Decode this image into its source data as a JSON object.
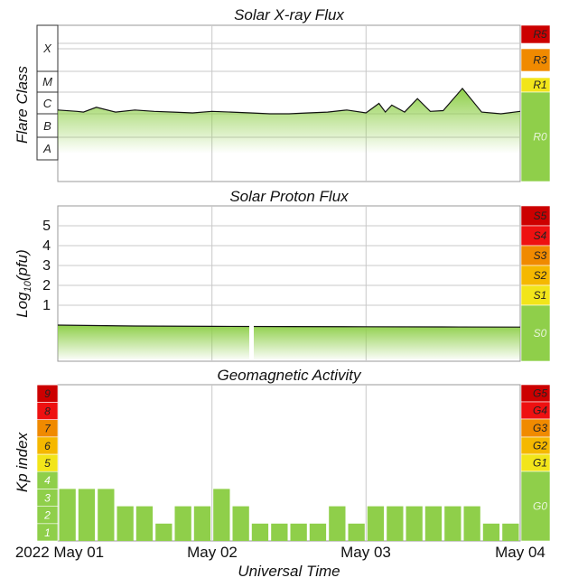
{
  "chart_data": [
    {
      "type": "area",
      "title": "Solar X-ray Flux",
      "ylabel": "Flare Class",
      "y_scale": "log",
      "y_classes": [
        "A",
        "B",
        "C",
        "M",
        "X"
      ],
      "scale_labels": [
        "R5",
        "R3",
        "R1",
        "R0"
      ],
      "scale_colors": [
        "#cc0000",
        "#f08a00",
        "#f2e51a",
        "#8fcf4a"
      ],
      "x": [
        "May 01 00h",
        "May 01 03h",
        "May 01 04h",
        "May 01 06h",
        "May 01 09h",
        "May 01 12h",
        "May 01 15h",
        "May 01 18h",
        "May 01 21h",
        "May 02 00h",
        "May 02 03h",
        "May 02 06h",
        "May 02 09h",
        "May 02 12h",
        "May 02 15h",
        "May 02 18h",
        "May 02 21h",
        "May 03 00h",
        "May 03 02h",
        "May 03 03h",
        "May 03 04h",
        "May 03 06h",
        "May 03 08h",
        "May 03 10h",
        "May 03 12h",
        "May 03 15h",
        "May 03 18h",
        "May 03 21h",
        "May 04 00h"
      ],
      "values": [
        "C1.5",
        "C1.3",
        "C1.2",
        "C2.0",
        "C1.2",
        "C1.5",
        "C1.3",
        "C1.2",
        "C1.1",
        "C1.3",
        "C1.2",
        "C1.1",
        "C1.0",
        "C1.0",
        "C1.1",
        "C1.2",
        "C1.5",
        "C1.1",
        "C3.0",
        "C1.2",
        "C2.5",
        "C1.2",
        "C5.0",
        "C1.3",
        "C1.4",
        "M1.5",
        "C1.2",
        "C1.0",
        "C1.3"
      ]
    },
    {
      "type": "area",
      "title": "Solar Proton Flux",
      "ylabel": "Log10(pfu)",
      "ylabel_base": "Log",
      "ylabel_sub": "10",
      "ylabel_tail": "(pfu)",
      "y_ticks": [
        "1",
        "2",
        "3",
        "4",
        "5"
      ],
      "ylim": [
        -1.5,
        6
      ],
      "scale_labels": [
        "S5",
        "S4",
        "S3",
        "S2",
        "S1",
        "S0"
      ],
      "scale_colors": [
        "#cc0000",
        "#ee1111",
        "#f08a00",
        "#f5b800",
        "#f2e51a",
        "#8fcf4a"
      ],
      "x": [
        "May 01 00h",
        "May 01 12h",
        "May 02 00h",
        "May 02 12h",
        "May 03 00h",
        "May 03 12h",
        "May 04 00h"
      ],
      "values": [
        -0.55,
        -0.6,
        -0.62,
        -0.63,
        -0.64,
        -0.65,
        -0.66
      ]
    },
    {
      "type": "bar",
      "title": "Geomagnetic Activity",
      "ylabel": "Kp index",
      "ylim": [
        0,
        9
      ],
      "kp_levels": [
        "1",
        "2",
        "3",
        "4",
        "5",
        "6",
        "7",
        "8",
        "9"
      ],
      "kp_colors": [
        "#8fcf4a",
        "#8fcf4a",
        "#8fcf4a",
        "#8fcf4a",
        "#f2e51a",
        "#f5b800",
        "#f08a00",
        "#ee1111",
        "#cc0000"
      ],
      "scale_labels": [
        "G5",
        "G4",
        "G3",
        "G2",
        "G1",
        "G0"
      ],
      "scale_colors": [
        "#cc0000",
        "#ee1111",
        "#f08a00",
        "#f5b800",
        "#f2e51a",
        "#8fcf4a"
      ],
      "categories": [
        "May 01 00h",
        "May 01 03h",
        "May 01 06h",
        "May 01 09h",
        "May 01 12h",
        "May 01 15h",
        "May 01 18h",
        "May 01 21h",
        "May 02 00h",
        "May 02 03h",
        "May 02 06h",
        "May 02 09h",
        "May 02 12h",
        "May 02 15h",
        "May 02 18h",
        "May 02 21h",
        "May 03 00h",
        "May 03 03h",
        "May 03 06h",
        "May 03 09h",
        "May 03 12h",
        "May 03 15h",
        "May 03 18h",
        "May 03 21h"
      ],
      "values": [
        3,
        3,
        3,
        2,
        2,
        1,
        2,
        2,
        3,
        2,
        1,
        1,
        1,
        1,
        2,
        1,
        2,
        2,
        2,
        2,
        2,
        2,
        1,
        1
      ]
    }
  ],
  "x_axis": {
    "label": "Universal Time",
    "ticks": [
      "2022 May 01",
      "May 02",
      "May 03",
      "May 04"
    ]
  },
  "colors": {
    "bar": "#8fcf4a",
    "trace": "#111111"
  }
}
